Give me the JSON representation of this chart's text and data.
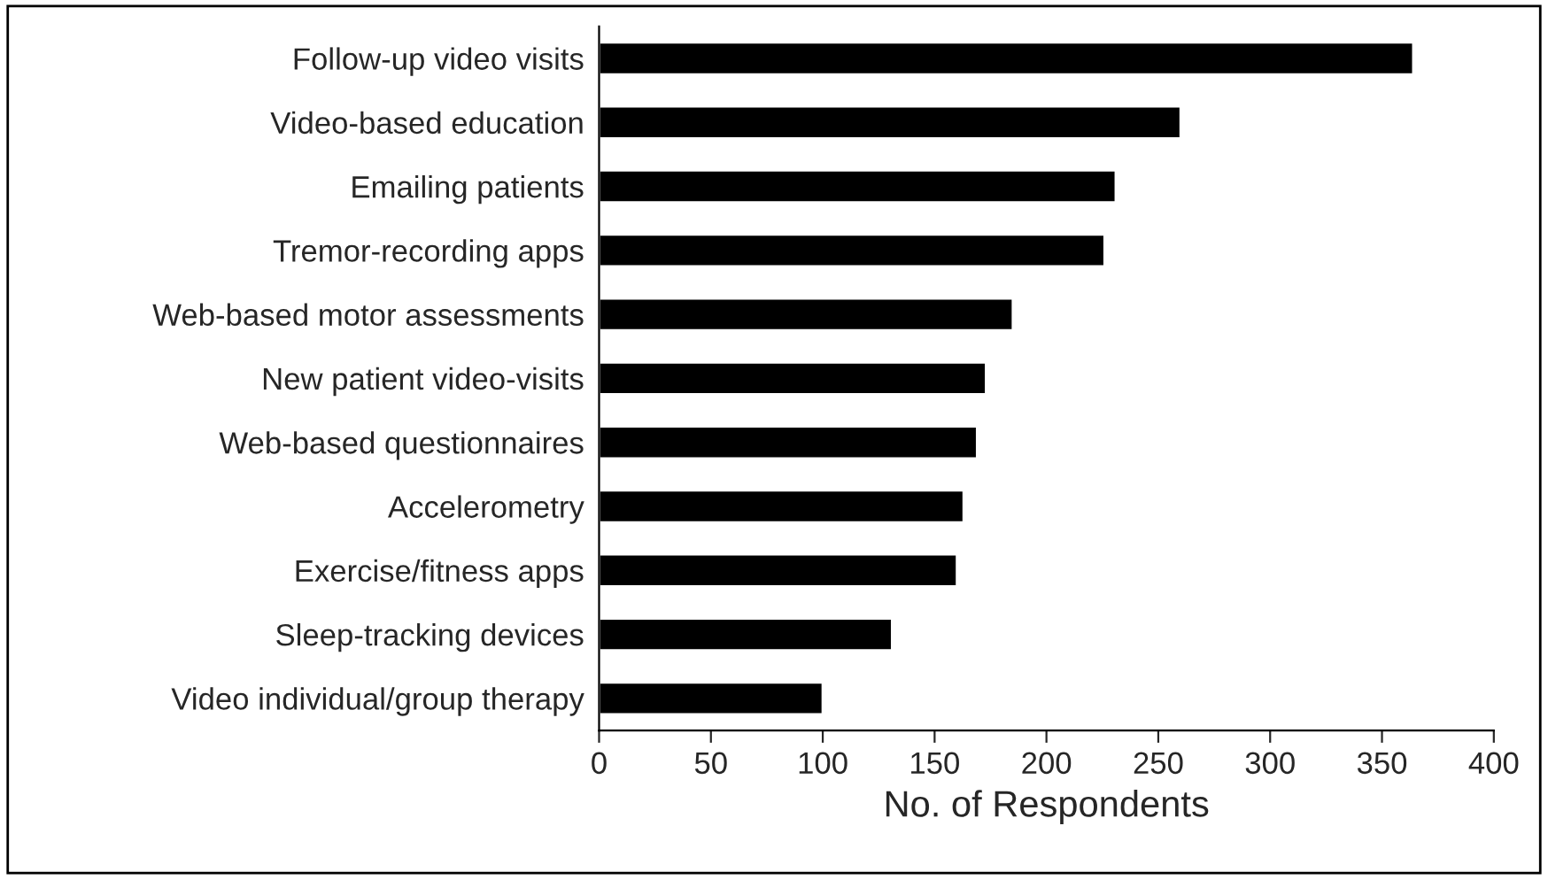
{
  "chart_data": {
    "type": "bar",
    "orientation": "horizontal",
    "xlabel": "No. of Respondents",
    "categories": [
      "Follow-up video visits",
      "Video-based education",
      "Emailing patients",
      "Tremor-recording apps",
      "Web-based motor assessments",
      "New patient video-visits",
      "Web-based questionnaires",
      "Accelerometry",
      "Exercise/fitness apps",
      "Sleep-tracking devices",
      "Video individual/group therapy"
    ],
    "values": [
      364,
      260,
      231,
      226,
      185,
      173,
      169,
      163,
      160,
      131,
      100
    ],
    "color": "#000000",
    "xlim": [
      0,
      400
    ],
    "xticks": [
      0,
      50,
      100,
      150,
      200,
      250,
      300,
      350,
      400
    ],
    "grid": false
  }
}
